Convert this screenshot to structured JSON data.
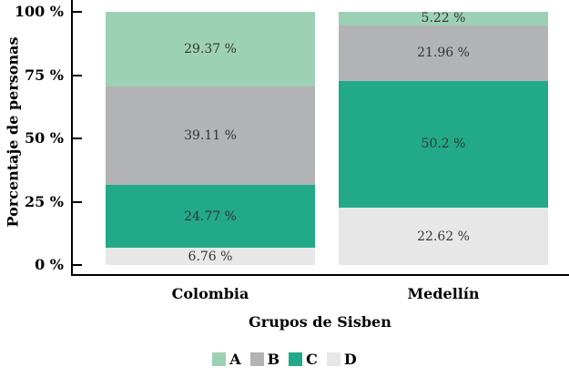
{
  "chart_data": {
    "type": "bar",
    "variant": "stacked-percent",
    "xlabel": "Grupos de Sisben",
    "ylabel": "Porcentaje de personas",
    "categories": [
      "Colombia",
      "Medellín"
    ],
    "series": [
      {
        "name": "A",
        "color": "#9dd1b5",
        "values": [
          29.37,
          5.22
        ],
        "labels": [
          "29.37 %",
          "5.22 %"
        ]
      },
      {
        "name": "B",
        "color": "#b1b3b5",
        "values": [
          39.11,
          21.96
        ],
        "labels": [
          "39.11 %",
          "21.96 %"
        ]
      },
      {
        "name": "C",
        "color": "#22a987",
        "values": [
          24.77,
          50.2
        ],
        "labels": [
          "24.77 %",
          "50.2 %"
        ]
      },
      {
        "name": "D",
        "color": "#e7e7e8",
        "values": [
          6.76,
          22.62
        ],
        "labels": [
          "6.76 %",
          "22.62 %"
        ]
      }
    ],
    "stack_order": "top-to-bottom",
    "ylim": [
      0,
      100
    ],
    "yticks": [
      100,
      75,
      50,
      25,
      0
    ],
    "ytick_labels": [
      "100 %",
      "75 %",
      "50 %",
      "25 %",
      "0 %"
    ],
    "grid": false,
    "legend": {
      "position": "bottom",
      "entries": [
        "A",
        "B",
        "C",
        "D"
      ]
    },
    "colors": {
      "axis": "#000000",
      "segment_label": "#343434",
      "background": "#ffffff"
    }
  }
}
